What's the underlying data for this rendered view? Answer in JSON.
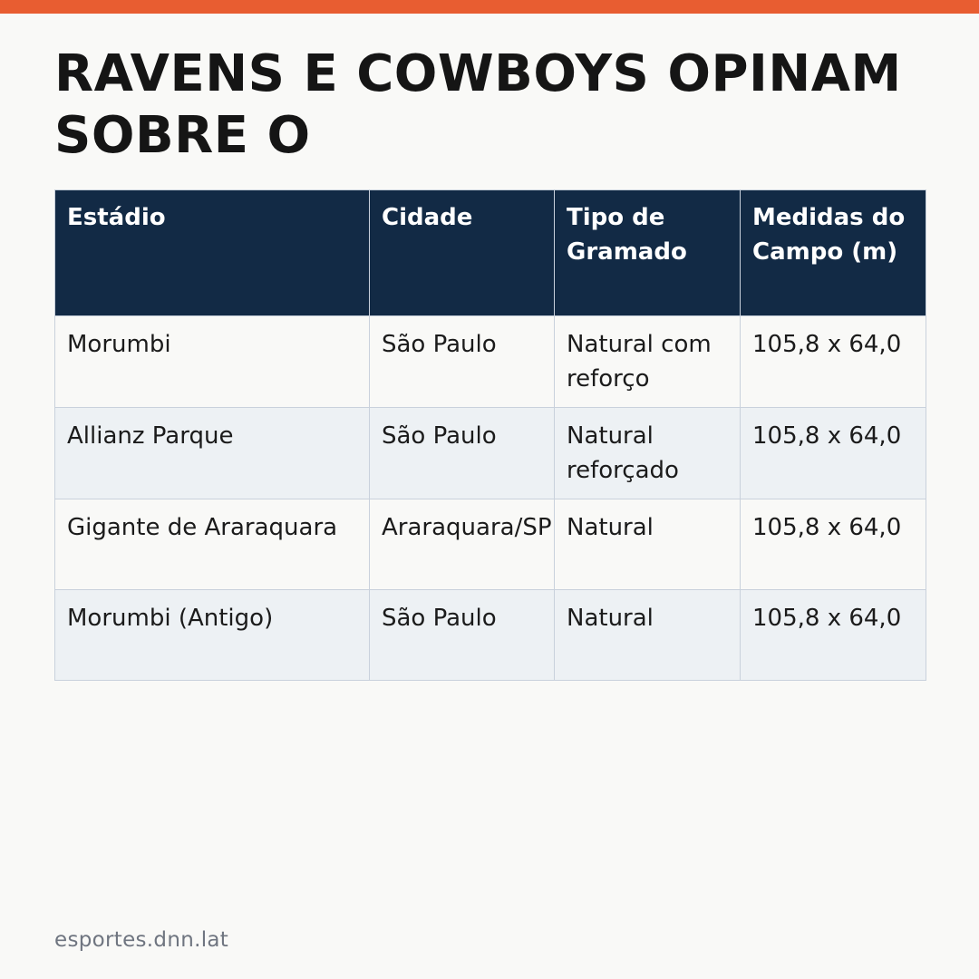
{
  "accent_color": "#e85d31",
  "header_color": "#122a45",
  "title": "RAVENS E COWBOYS OPINAM SOBRE O",
  "table": {
    "headers": [
      "Estádio",
      "Cidade",
      "Tipo de Gramado",
      "Medidas do Campo (m)"
    ],
    "rows": [
      [
        "Morumbi",
        "São Paulo",
        "Natural com reforço",
        "105,8 x 64,0"
      ],
      [
        "Allianz Parque",
        "São Paulo",
        "Natural reforçado",
        "105,8 x 64,0"
      ],
      [
        "Gigante de Araraquara",
        "Araraquara/SP",
        "Natural",
        "105,8 x 64,0"
      ],
      [
        "Morumbi (Antigo)",
        "São Paulo",
        "Natural",
        "105,8 x 64,0"
      ]
    ]
  },
  "footer": {
    "source": "esportes.dnn.lat"
  }
}
